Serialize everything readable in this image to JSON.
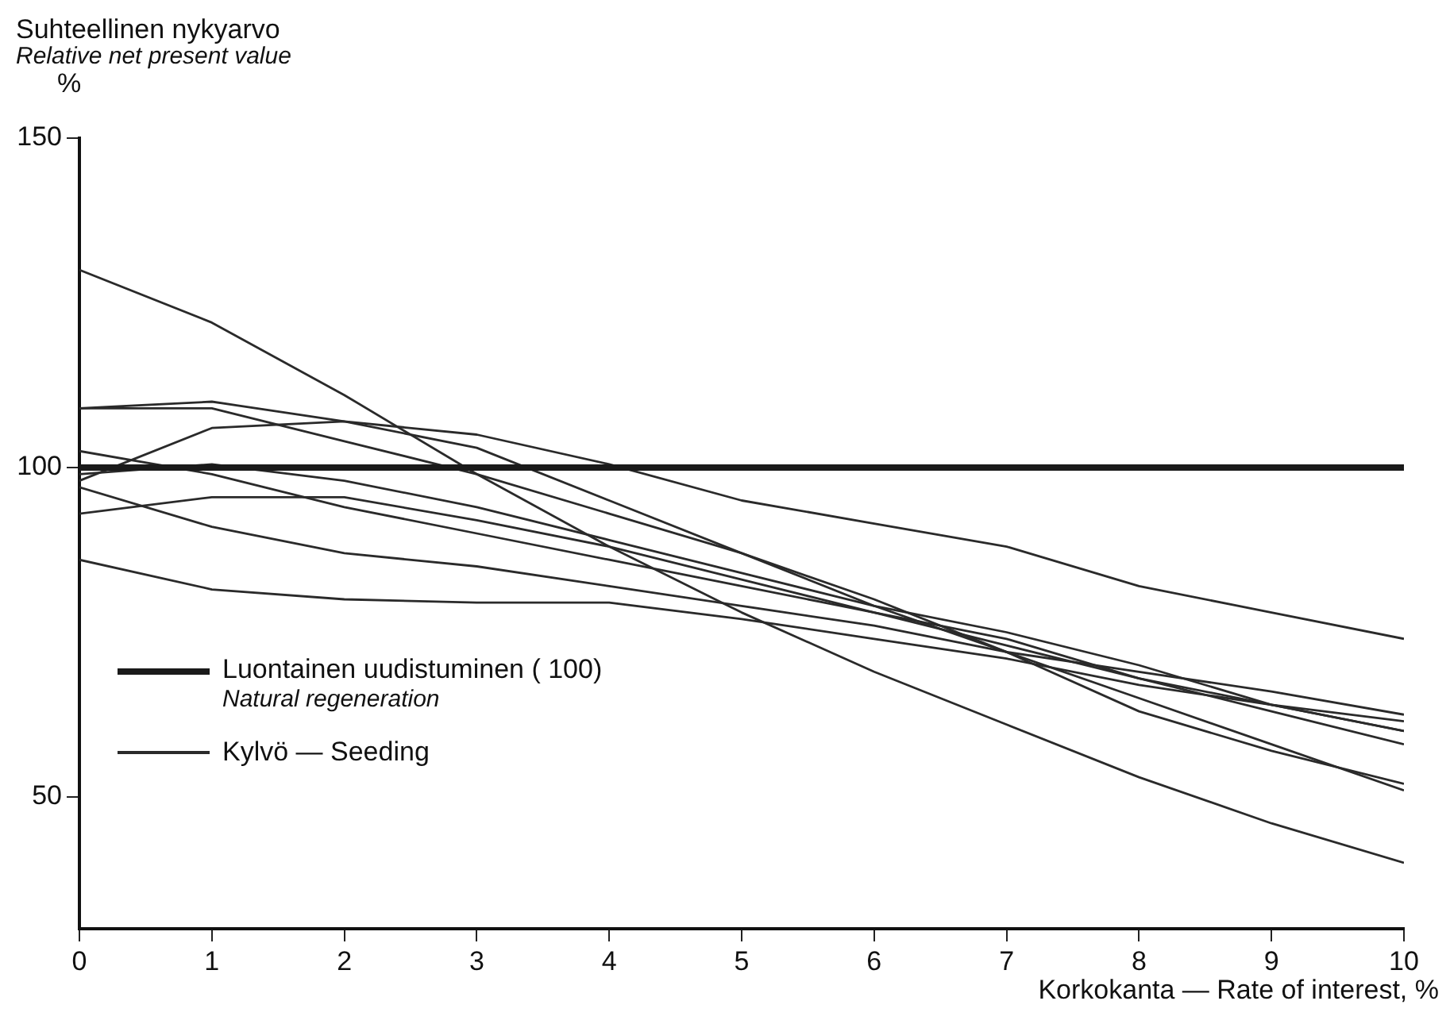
{
  "chart_data": {
    "type": "line",
    "ylabel": "Suhteellinen nykyarvo\nRelative net present value\n%",
    "xlabel": "Korkokanta — Rate of interest, %",
    "x": [
      0,
      1,
      2,
      3,
      4,
      5,
      6,
      7,
      8,
      9,
      10
    ],
    "xlim": [
      0,
      10
    ],
    "xticks": [
      0,
      1,
      2,
      3,
      4,
      5,
      6,
      7,
      8,
      9,
      10
    ],
    "ylim": [
      30,
      150
    ],
    "yticks": [
      50,
      100,
      150
    ],
    "grid": false,
    "marker": "none",
    "legend": "bottom left",
    "series": [
      {
        "name": "Luontainen uudistuminen ( 100)\nNatural regeneration",
        "color": "#1a1a1a",
        "values": [
          100,
          100,
          100,
          100,
          100,
          100,
          100,
          100,
          100,
          100,
          100
        ]
      },
      {
        "name": "Kylvö — Seeding",
        "color": "#2a2a2a",
        "values": [
          130,
          122,
          111,
          99,
          88,
          78,
          69,
          61,
          53,
          46,
          40
        ]
      },
      {
        "color": "#2a2a2a",
        "values": [
          109,
          110,
          107,
          105,
          100.5,
          95,
          91.5,
          88,
          82,
          78,
          74
        ]
      },
      {
        "color": "#2a2a2a",
        "values": [
          109,
          109,
          104,
          99,
          93,
          87,
          80,
          72,
          65,
          58,
          51
        ]
      },
      {
        "color": "#2a2a2a",
        "values": [
          98,
          106,
          107,
          103,
          95,
          87,
          79,
          72,
          63,
          57,
          52
        ]
      },
      {
        "color": "#2a2a2a",
        "values": [
          102.5,
          99,
          94,
          90,
          86,
          82,
          78,
          73,
          68,
          63,
          58
        ]
      },
      {
        "color": "#2a2a2a",
        "values": [
          99,
          100.5,
          98,
          94,
          89,
          84,
          79,
          75,
          70,
          64,
          60
        ]
      },
      {
        "color": "#2a2a2a",
        "values": [
          97,
          91,
          87,
          85,
          82,
          79,
          76,
          72,
          69,
          66,
          62.5
        ]
      },
      {
        "color": "#2a2a2a",
        "values": [
          93,
          95.5,
          95.5,
          92,
          88,
          83,
          78,
          74,
          68,
          64,
          60
        ]
      },
      {
        "color": "#2a2a2a",
        "values": [
          86,
          81.5,
          80,
          79.5,
          79.5,
          77,
          74,
          71,
          67,
          64,
          61.5
        ]
      }
    ]
  }
}
